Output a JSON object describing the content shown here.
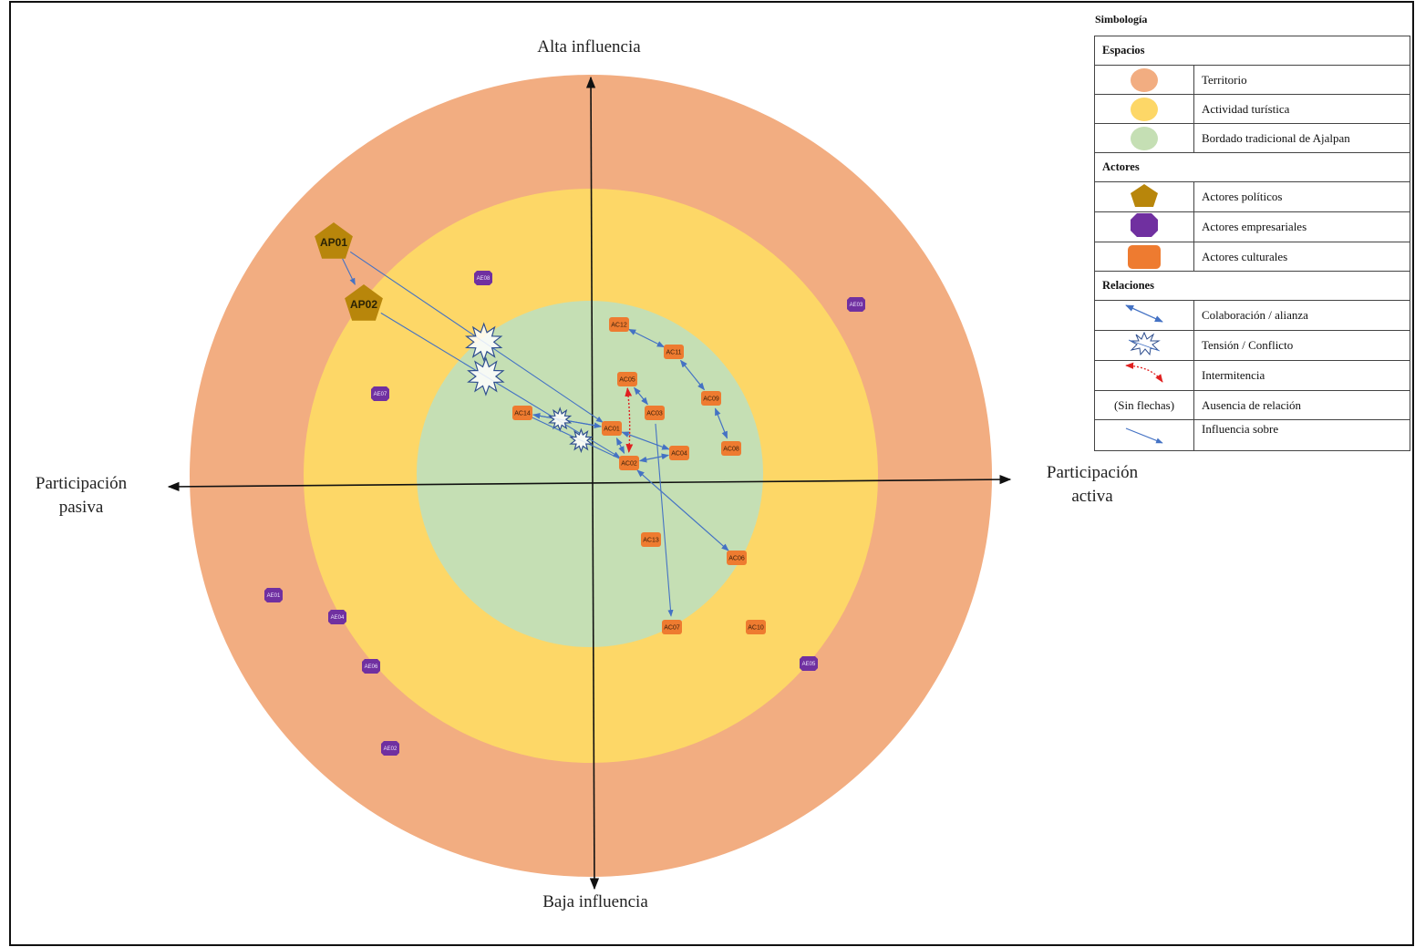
{
  "colors": {
    "territorio": "#f2ad81",
    "actividad": "#fdd767",
    "bordado": "#c5dfb4",
    "politico": "#b8860b",
    "empresarial": "#7030a0",
    "cultural": "#ee7b30",
    "relation": "#4472c4",
    "intermitencia": "#e02020"
  },
  "axes": {
    "top": "Alta influencia",
    "bottom": "Baja influencia",
    "left_line1": "Participación",
    "left_line2": "pasiva",
    "right_line1": "Participación",
    "right_line2": "activa"
  },
  "nodes": {
    "political": [
      {
        "id": "AP01",
        "label": "AP01"
      },
      {
        "id": "AP02",
        "label": "AP02"
      }
    ],
    "business": [
      {
        "id": "AE08",
        "label": "AE08"
      },
      {
        "id": "AE03",
        "label": "AE03"
      },
      {
        "id": "AE07",
        "label": "AE07"
      },
      {
        "id": "AE01",
        "label": "AE01"
      },
      {
        "id": "AE04",
        "label": "AE04"
      },
      {
        "id": "AE06",
        "label": "AE06"
      },
      {
        "id": "AE05",
        "label": "AE05"
      },
      {
        "id": "AE02",
        "label": "AE02"
      }
    ],
    "cultural": [
      {
        "id": "AC12",
        "label": "AC12"
      },
      {
        "id": "AC11",
        "label": "AC11"
      },
      {
        "id": "AC05",
        "label": "AC05"
      },
      {
        "id": "AC09",
        "label": "AC09"
      },
      {
        "id": "AC03",
        "label": "AC03"
      },
      {
        "id": "AC14",
        "label": "AC14"
      },
      {
        "id": "AC01",
        "label": "AC01"
      },
      {
        "id": "AC08",
        "label": "AC08"
      },
      {
        "id": "AC04",
        "label": "AC04"
      },
      {
        "id": "AC02",
        "label": "AC02"
      },
      {
        "id": "AC13",
        "label": "AC13"
      },
      {
        "id": "AC06",
        "label": "AC06"
      },
      {
        "id": "AC07",
        "label": "AC07"
      },
      {
        "id": "AC10",
        "label": "AC10"
      }
    ]
  },
  "relations": {
    "collaboration": [
      [
        "AC12",
        "AC11"
      ],
      [
        "AC11",
        "AC09"
      ],
      [
        "AC09",
        "AC08"
      ],
      [
        "AC14",
        "AC01"
      ],
      [
        "AC01",
        "AC02"
      ],
      [
        "AC02",
        "AC04"
      ],
      [
        "AC03",
        "AC05"
      ],
      [
        "AC01",
        "AC04"
      ],
      [
        "AC02",
        "AC06"
      ]
    ],
    "influence": [
      [
        "AP01",
        "AP02"
      ],
      [
        "AP01",
        "AC01"
      ],
      [
        "AP02",
        "AC02"
      ],
      [
        "AC03",
        "AC07"
      ]
    ],
    "conflict": [
      [
        "AP01",
        "AC01"
      ],
      [
        "AP02",
        "AC02"
      ],
      [
        "AC14",
        "AC01"
      ],
      [
        "AC14",
        "AC02"
      ]
    ],
    "intermittent": [
      [
        "AC05",
        "AC02"
      ]
    ]
  },
  "legend": {
    "title": "Simbología",
    "sections": [
      {
        "title": "Espacios",
        "rows": [
          {
            "symbol": "territorio-swatch",
            "label": "Territorio"
          },
          {
            "symbol": "actividad-swatch",
            "label": "Actividad turística"
          },
          {
            "symbol": "bordado-swatch",
            "label": "Bordado tradicional de Ajalpan"
          }
        ]
      },
      {
        "title": "Actores",
        "rows": [
          {
            "symbol": "pentagon-icon",
            "label": "Actores políticos"
          },
          {
            "symbol": "octagon-icon",
            "label": "Actores empresariales"
          },
          {
            "symbol": "rounded-rect-icon",
            "label": "Actores culturales"
          }
        ]
      },
      {
        "title": "Relaciones",
        "rows": [
          {
            "symbol": "double-arrow-icon",
            "label": "Colaboración / alianza"
          },
          {
            "symbol": "starburst-icon",
            "label": "Tensión / Conflicto"
          },
          {
            "symbol": "dotted-arrow-icon",
            "label": "Intermitencia"
          },
          {
            "symbol": "text",
            "symbol_text": "(Sin flechas)",
            "label": "Ausencia de relación"
          },
          {
            "symbol": "single-arrow-icon",
            "label": "Influencia sobre"
          }
        ]
      }
    ]
  }
}
